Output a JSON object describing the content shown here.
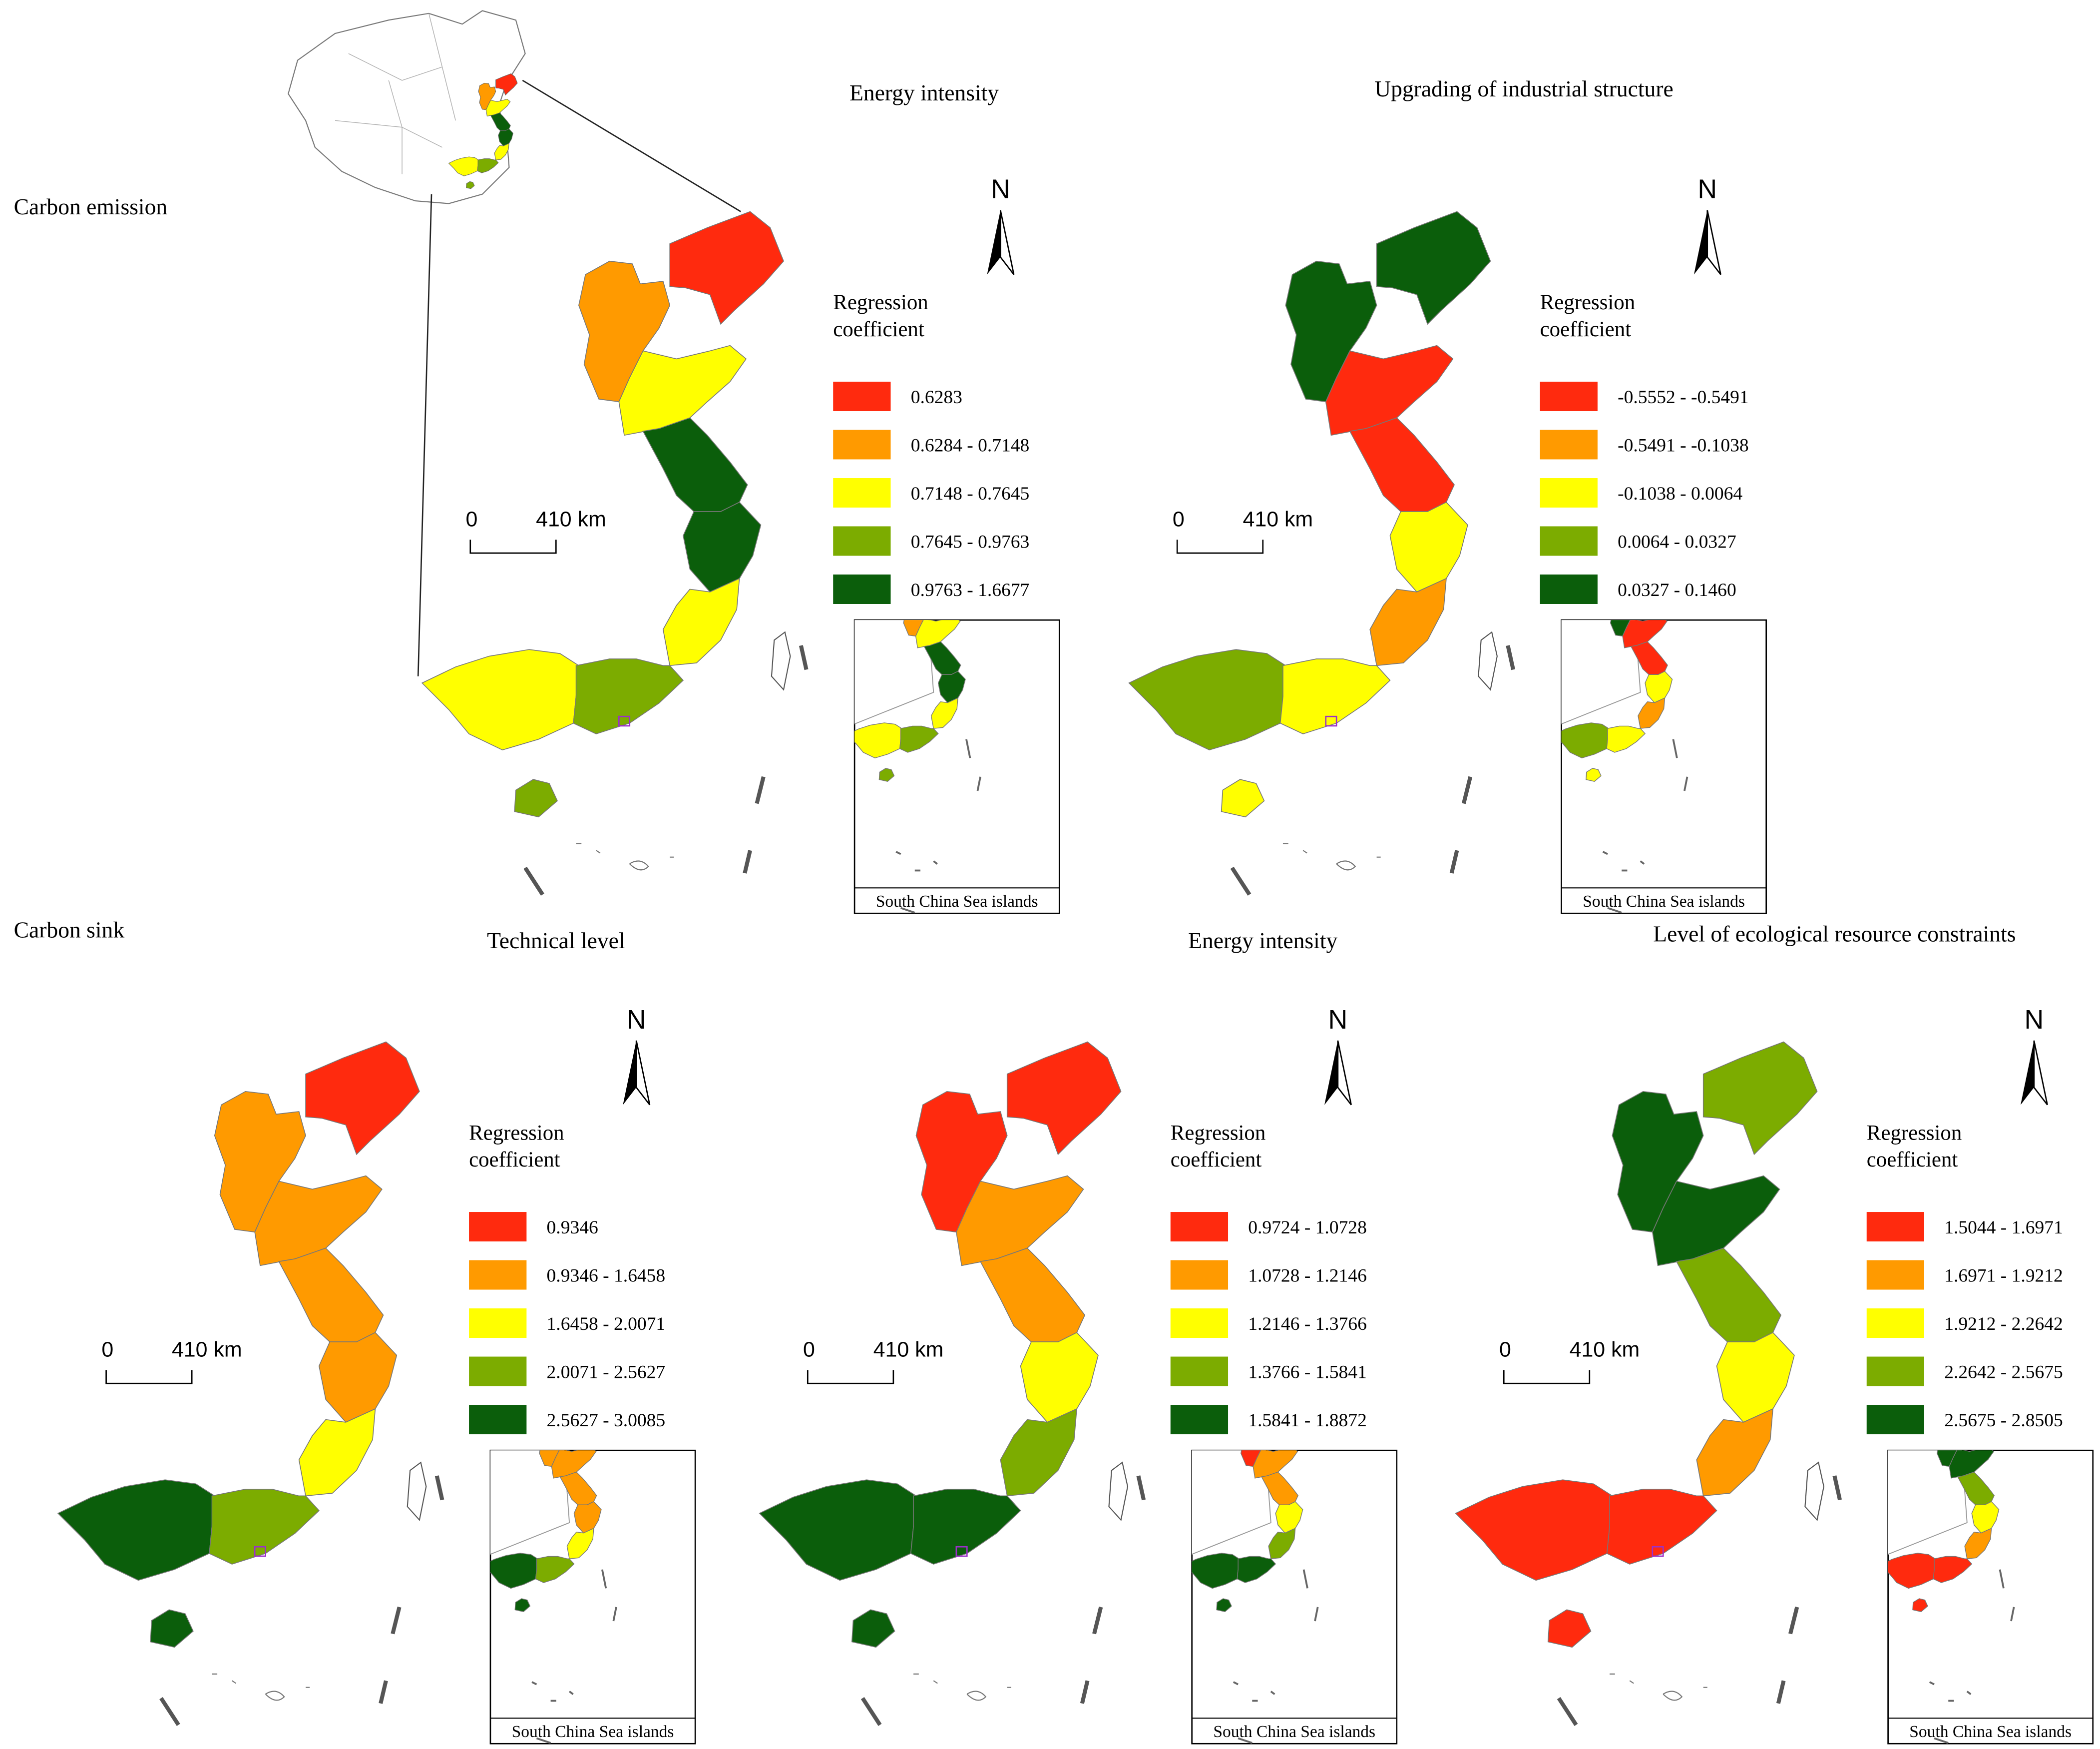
{
  "sections": [
    {
      "label": "Carbon emission",
      "panels": [
        {
          "title": "Energy intensity",
          "legend_title": [
            "Regression",
            "coefficient"
          ],
          "legend": [
            {
              "label": "0.6283",
              "color": "#ff2a0e"
            },
            {
              "label": "0.6284 - 0.7148",
              "color": "#ff9a00"
            },
            {
              "label": "0.7148 - 0.7645",
              "color": "#ffff00"
            },
            {
              "label": "0.7645 - 0.9763",
              "color": "#7cac00"
            },
            {
              "label": "0.9763 - 1.6677",
              "color": "#0b5e0b"
            }
          ],
          "region_colors": [
            "#ff2a0e",
            "#ff9a00",
            "#ffff00",
            "#0b5e0b",
            "#0b5e0b",
            "#ffff00",
            "#ffff00",
            "#7cac00",
            "#7cac00"
          ],
          "north": "N",
          "scale": [
            "0",
            "410 km"
          ],
          "inset_label": "South China Sea islands"
        },
        {
          "title": "Upgrading of industrial structure",
          "legend_title": [
            "Regression",
            "coefficient"
          ],
          "legend": [
            {
              "label": "-0.5552 - -0.5491",
              "color": "#ff2a0e"
            },
            {
              "label": "-0.5491 - -0.1038",
              "color": "#ff9a00"
            },
            {
              "label": "-0.1038 - 0.0064",
              "color": "#ffff00"
            },
            {
              "label": "0.0064 - 0.0327",
              "color": "#7cac00"
            },
            {
              "label": "0.0327 - 0.1460",
              "color": "#0b5e0b"
            }
          ],
          "region_colors": [
            "#0b5e0b",
            "#0b5e0b",
            "#ff2a0e",
            "#ff2a0e",
            "#ffff00",
            "#ff9a00",
            "#7cac00",
            "#ffff00",
            "#ffff00"
          ],
          "north": "N",
          "scale": [
            "0",
            "410 km"
          ],
          "inset_label": "South China Sea islands"
        }
      ]
    },
    {
      "label": "Carbon sink",
      "panels": [
        {
          "title": "Technical level",
          "legend_title": [
            "Regression",
            "coefficient"
          ],
          "legend": [
            {
              "label": "0.9346",
              "color": "#ff2a0e"
            },
            {
              "label": "0.9346 - 1.6458",
              "color": "#ff9a00"
            },
            {
              "label": "1.6458 - 2.0071",
              "color": "#ffff00"
            },
            {
              "label": "2.0071 - 2.5627",
              "color": "#7cac00"
            },
            {
              "label": "2.5627 - 3.0085",
              "color": "#0b5e0b"
            }
          ],
          "region_colors": [
            "#ff2a0e",
            "#ff9a00",
            "#ff9a00",
            "#ff9a00",
            "#ff9a00",
            "#ffff00",
            "#0b5e0b",
            "#7cac00",
            "#0b5e0b"
          ],
          "north": "N",
          "scale": [
            "0",
            "410 km"
          ],
          "inset_label": "South China Sea islands"
        },
        {
          "title": "Energy intensity",
          "legend_title": [
            "Regression",
            "coefficient"
          ],
          "legend": [
            {
              "label": "0.9724 - 1.0728",
              "color": "#ff2a0e"
            },
            {
              "label": "1.0728 - 1.2146",
              "color": "#ff9a00"
            },
            {
              "label": "1.2146 - 1.3766",
              "color": "#ffff00"
            },
            {
              "label": "1.3766 - 1.5841",
              "color": "#7cac00"
            },
            {
              "label": "1.5841 - 1.8872",
              "color": "#0b5e0b"
            }
          ],
          "region_colors": [
            "#ff2a0e",
            "#ff2a0e",
            "#ff9a00",
            "#ff9a00",
            "#ffff00",
            "#7cac00",
            "#0b5e0b",
            "#0b5e0b",
            "#0b5e0b"
          ],
          "north": "N",
          "scale": [
            "0",
            "410 km"
          ],
          "inset_label": "South China Sea islands"
        },
        {
          "title": "Level of ecological resource constraints",
          "legend_title": [
            "Regression",
            "coefficient"
          ],
          "legend": [
            {
              "label": "1.5044 - 1.6971",
              "color": "#ff2a0e"
            },
            {
              "label": "1.6971 - 1.9212",
              "color": "#ff9a00"
            },
            {
              "label": "1.9212 - 2.2642",
              "color": "#ffff00"
            },
            {
              "label": "2.2642 - 2.5675",
              "color": "#7cac00"
            },
            {
              "label": "2.5675 - 2.8505",
              "color": "#0b5e0b"
            }
          ],
          "region_colors": [
            "#7cac00",
            "#0b5e0b",
            "#0b5e0b",
            "#7cac00",
            "#ffff00",
            "#ff9a00",
            "#ff2a0e",
            "#ff2a0e",
            "#ff2a0e"
          ],
          "north": "N",
          "scale": [
            "0",
            "410 km"
          ],
          "inset_label": "South China Sea islands"
        }
      ]
    }
  ]
}
